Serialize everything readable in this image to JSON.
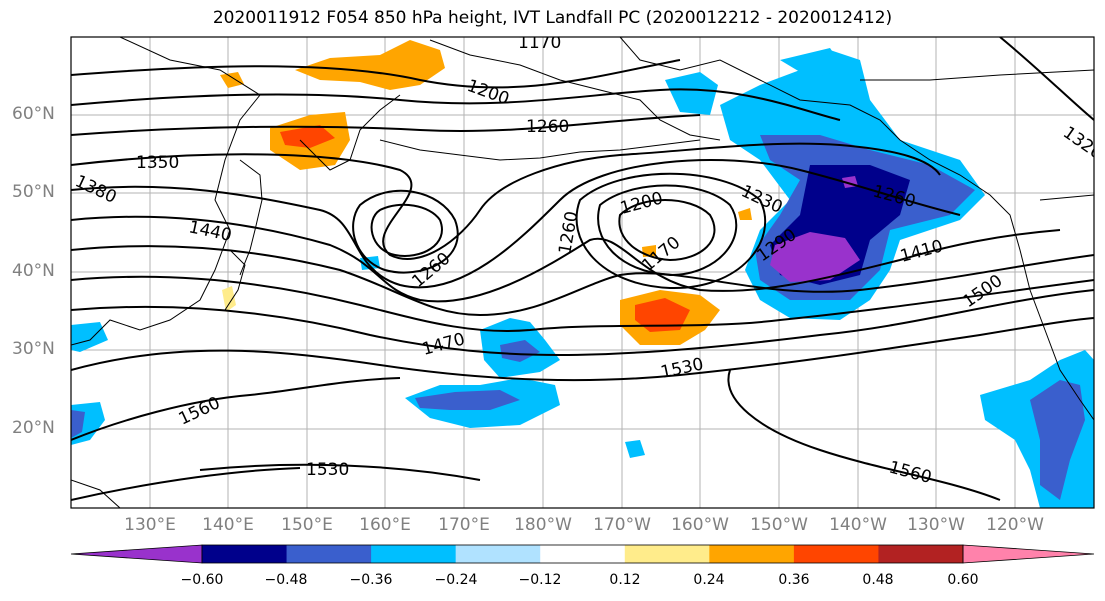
{
  "title": "2020011912 F054 850 hPa height, IVT Landfall PC (2020012212 - 2020012412)",
  "lat_labels": [
    "60°N",
    "50°N",
    "40°N",
    "30°N",
    "20°N"
  ],
  "lon_labels": [
    "130°E",
    "140°E",
    "150°E",
    "160°E",
    "170°E",
    "180°W",
    "170°W",
    "160°W",
    "150°W",
    "140°W",
    "130°W",
    "120°W"
  ],
  "contour_labels": [
    "1170",
    "1200",
    "1260",
    "1350",
    "1380",
    "1440",
    "1260",
    "1200",
    "1230",
    "1260",
    "1170",
    "1410",
    "1290",
    "1260",
    "1470",
    "1530",
    "1500",
    "1560",
    "1530",
    "1560",
    "1320"
  ],
  "colorbar": {
    "ticks": [
      "−0.60",
      "−0.48",
      "−0.36",
      "−0.24",
      "−0.12",
      "0.12",
      "0.24",
      "0.36",
      "0.48",
      "0.60"
    ],
    "colors": [
      "#9932cc",
      "#00008b",
      "#3a5fcd",
      "#00bfff",
      "#b0e2ff",
      "#ffffff",
      "#ffec8b",
      "#ffa500",
      "#ff4500",
      "#b22222",
      "#ff82ab"
    ]
  }
}
